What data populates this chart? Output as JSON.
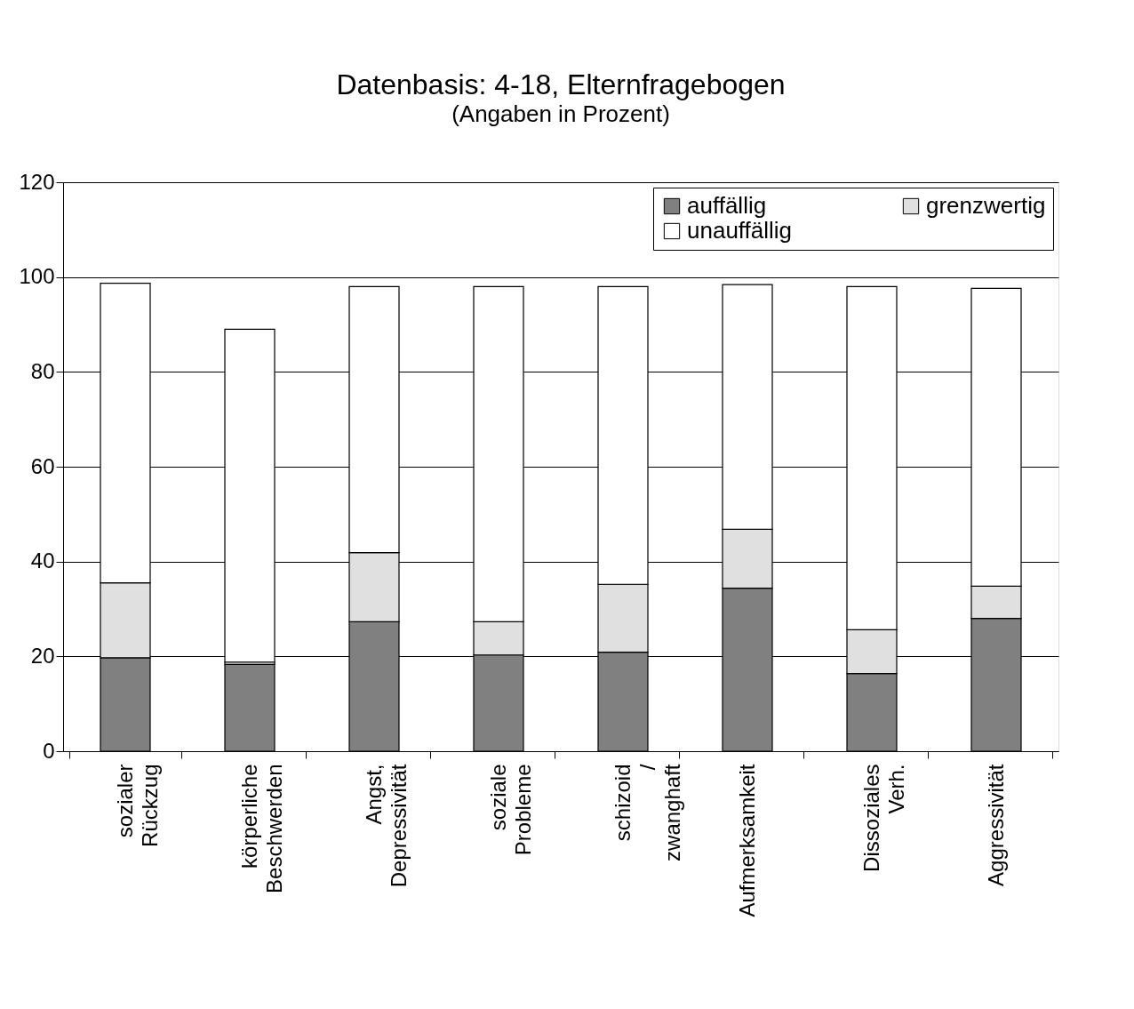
{
  "chart_data": {
    "type": "bar",
    "title": "Datenbasis: 4-18, Elternfragebogen",
    "subtitle": "(Angaben in Prozent)",
    "categories": [
      "sozialer Rückzug",
      "körperliche Beschwerden",
      "Angst, Depressivität",
      "soziale Probleme",
      "schizoid / zwanghaft",
      "Aufmerksamkeit",
      "Dissoziales Verh.",
      "Aggressivität"
    ],
    "stacked": true,
    "series": [
      {
        "name": "auffällig",
        "color": "#808080",
        "values": [
          19.7,
          18.3,
          27.3,
          20.3,
          20.9,
          34.4,
          16.4,
          28.0
        ]
      },
      {
        "name": "grenzwertig",
        "color": "#e0e0e0",
        "values": [
          15.8,
          0.5,
          14.6,
          7.0,
          14.3,
          12.4,
          9.2,
          6.8
        ]
      },
      {
        "name": "unauffällig",
        "color": "#ffffff",
        "values": [
          63.2,
          70.2,
          56.1,
          70.7,
          62.8,
          51.6,
          72.4,
          62.8
        ]
      }
    ],
    "ylim": [
      0,
      120
    ],
    "yticks": [
      0,
      20,
      40,
      60,
      80,
      100,
      120
    ],
    "grid": "y",
    "legend": "top right"
  }
}
